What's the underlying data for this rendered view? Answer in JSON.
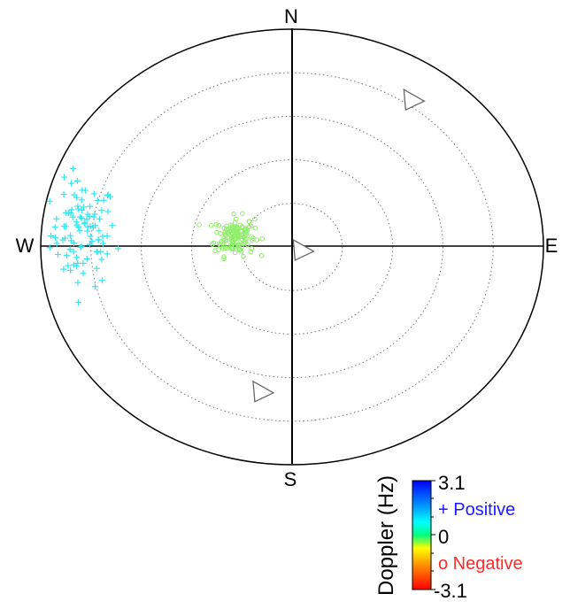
{
  "chart_data": {
    "type": "scatter",
    "projection": "polar",
    "compass": {
      "north": "N",
      "south": "S",
      "east": "E",
      "west": "W"
    },
    "range_rings": 4,
    "grid": true,
    "colorbar": {
      "label": "Doppler (Hz)",
      "max_label": "3.1",
      "mid_label": "0",
      "min_label": "-3.1",
      "range": [
        -3.1,
        3.1
      ],
      "positive_label": "+ Positive",
      "negative_label": "o Negative",
      "colormap": [
        "#ff0000",
        "#ff8000",
        "#ffff00",
        "#00ff80",
        "#00ffff",
        "#0080ff",
        "#0000ff"
      ],
      "placement": "bottom-right"
    },
    "stations": [
      {
        "x": 0.48,
        "y": 0.67
      },
      {
        "x": 0.04,
        "y": -0.02
      },
      {
        "x": -0.12,
        "y": -0.67
      }
    ],
    "series": [
      {
        "name": "+ Positive",
        "marker": "+",
        "color": "#33e6f0",
        "doppler": 1.2,
        "center": {
          "x": -0.83,
          "y": 0.06
        },
        "spread": {
          "x": 0.065,
          "y": 0.12
        },
        "count": 100
      },
      {
        "name": "o Negative",
        "marker": "o",
        "color": "#8fef6a",
        "doppler": -0.3,
        "center": {
          "x": -0.23,
          "y": 0.05
        },
        "spread": {
          "x": 0.04,
          "y": 0.045
        },
        "count": 140
      }
    ]
  }
}
